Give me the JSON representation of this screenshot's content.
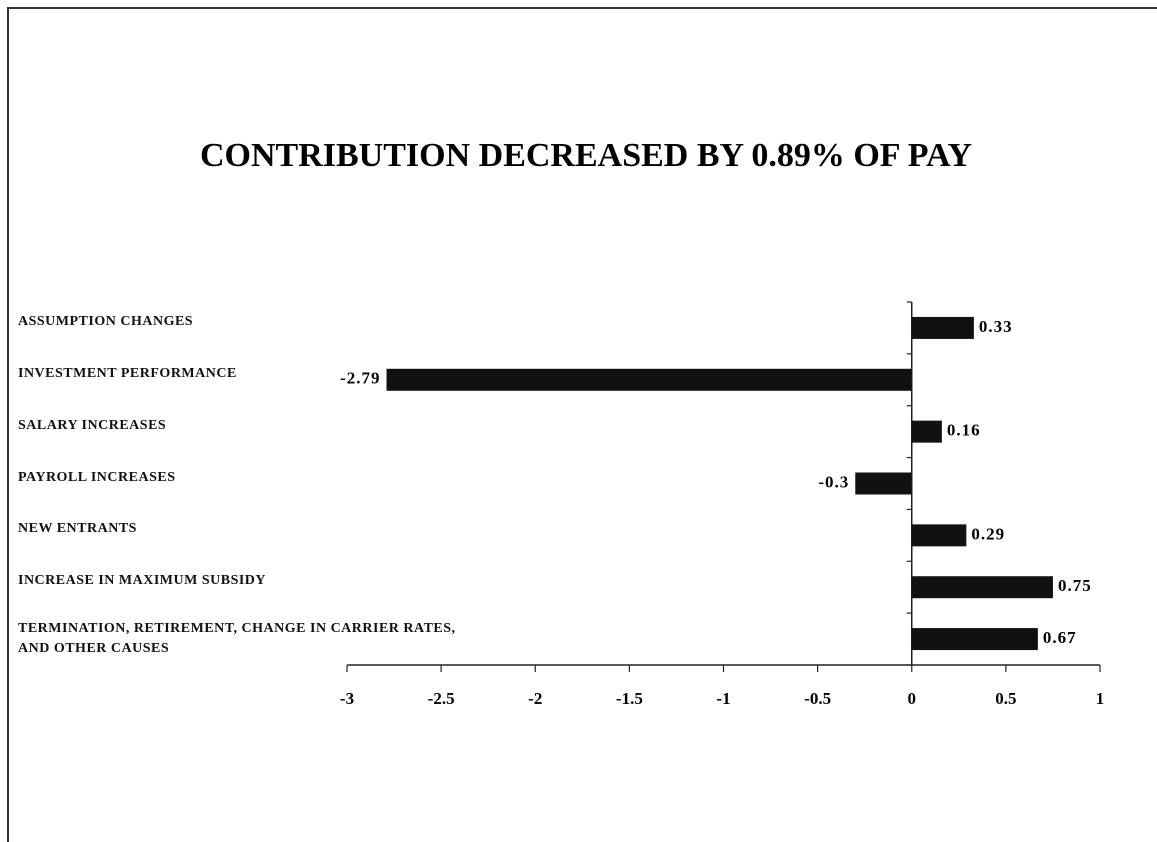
{
  "chart_data": {
    "type": "hbar",
    "title": "CONTRIBUTION DECREASED BY 0.89% OF PAY",
    "categories": [
      "ASSUMPTION CHANGES",
      "INVESTMENT PERFORMANCE",
      "SALARY INCREASES",
      "PAYROLL INCREASES",
      "NEW ENTRANTS",
      "INCREASE IN MAXIMUM SUBSIDY",
      "TERMINATION, RETIREMENT, CHANGE IN CARRIER RATES,\nAND OTHER CAUSES"
    ],
    "values": [
      0.33,
      -2.79,
      0.16,
      -0.3,
      0.29,
      0.75,
      0.67
    ],
    "color": "#111111",
    "xlim": [
      -3,
      1
    ],
    "xticks": [
      -3,
      -2.5,
      -2,
      -1.5,
      -1,
      -0.5,
      0,
      0.5,
      1
    ]
  }
}
